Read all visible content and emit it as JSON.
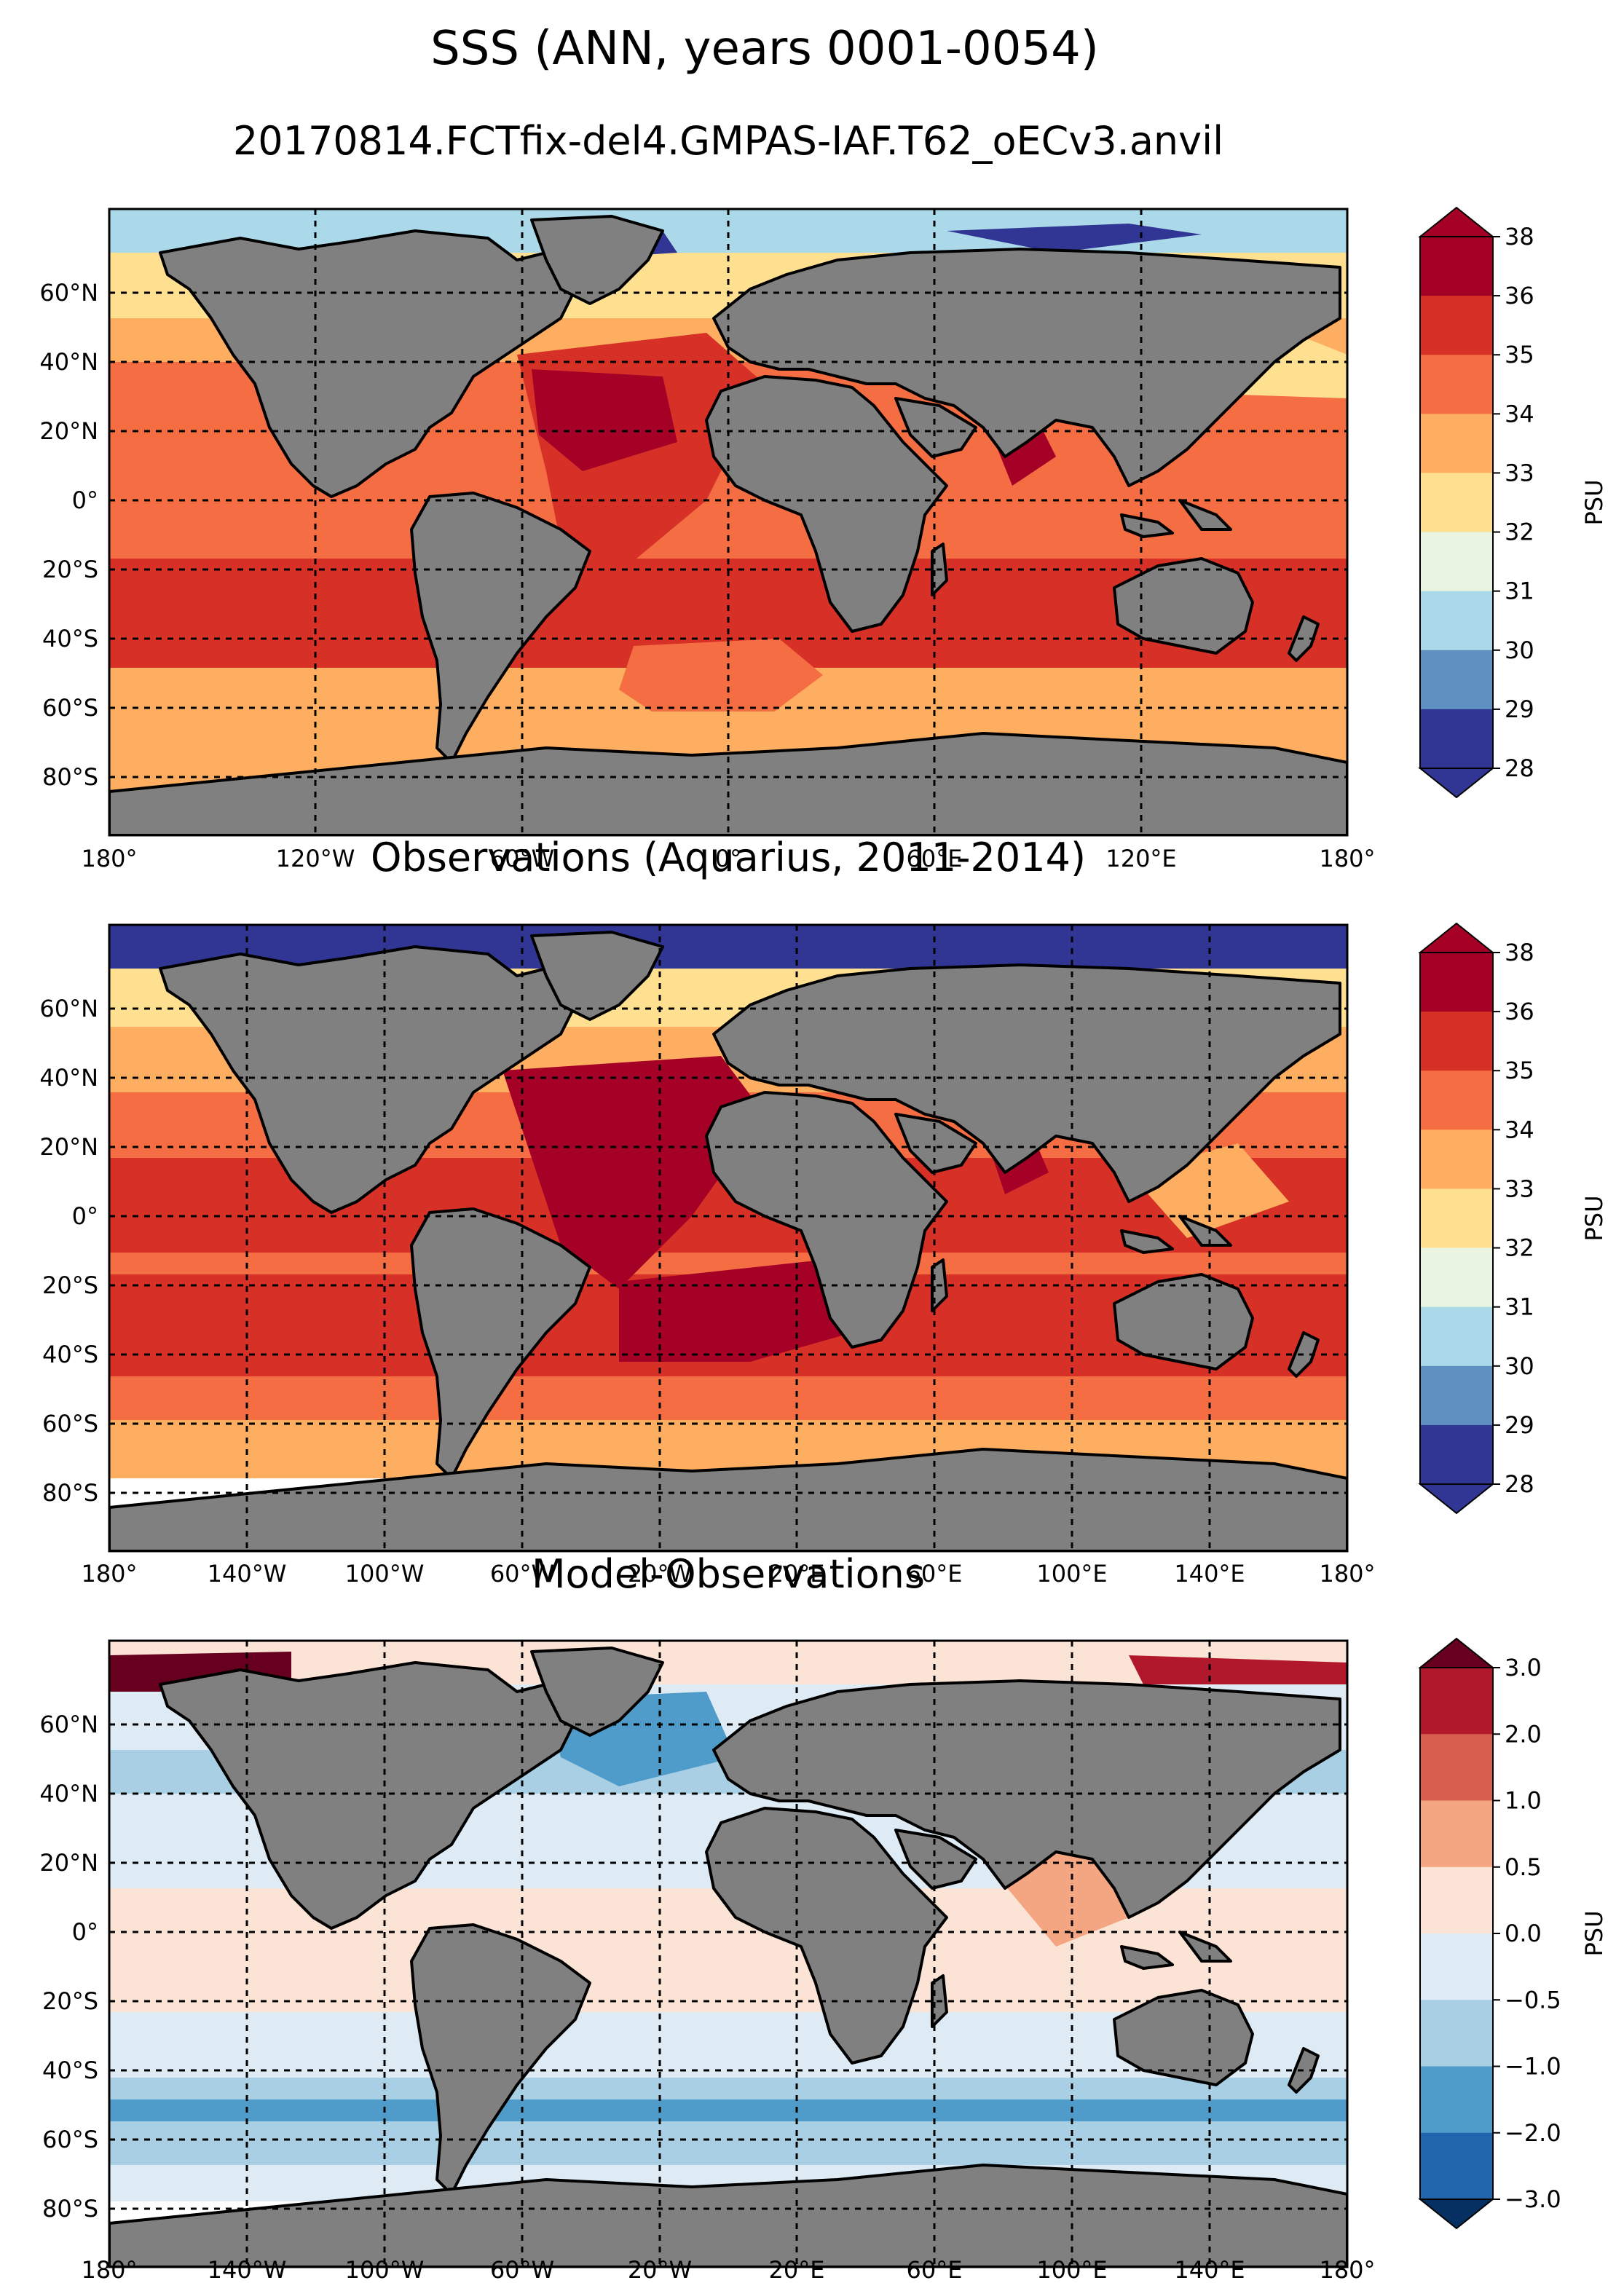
{
  "figure": {
    "title": "SSS (ANN, years 0001-0054)",
    "subtitle": "20170814.FCTfix-del4.GMPAS-IAF.T62_oECv3.anvil"
  },
  "lat_ticks": [
    "60°N",
    "40°N",
    "20°N",
    "0°",
    "20°S",
    "40°S",
    "60°S",
    "80°S"
  ],
  "panels": [
    {
      "id": "model",
      "title": "",
      "lon_ticks": [
        "180°",
        "120°W",
        "60°W",
        "0°",
        "60°E",
        "120°E",
        "180°"
      ],
      "colorbar": {
        "label": "PSU",
        "ticks": [
          "38",
          "36",
          "35",
          "34",
          "33",
          "32",
          "31",
          "30",
          "29",
          "28"
        ],
        "colors": [
          "#a50026",
          "#d73027",
          "#f46d43",
          "#fdae61",
          "#fee090",
          "#e9f5e1",
          "#abd9e9",
          "#5e90c2",
          "#313695"
        ]
      }
    },
    {
      "id": "obs",
      "title": "Observations (Aquarius, 2011-2014)",
      "lon_ticks": [
        "180°",
        "140°W",
        "100°W",
        "60°W",
        "20°W",
        "20°E",
        "60°E",
        "100°E",
        "140°E",
        "180°"
      ],
      "colorbar": {
        "label": "PSU",
        "ticks": [
          "38",
          "36",
          "35",
          "34",
          "33",
          "32",
          "31",
          "30",
          "29",
          "28"
        ],
        "colors": [
          "#a50026",
          "#d73027",
          "#f46d43",
          "#fdae61",
          "#fee090",
          "#e9f5e1",
          "#abd9e9",
          "#5e90c2",
          "#313695"
        ]
      }
    },
    {
      "id": "diff",
      "title": "Model-Observations",
      "lon_ticks": [
        "180°",
        "140°W",
        "100°W",
        "60°W",
        "20°W",
        "20°E",
        "60°E",
        "100°E",
        "140°E",
        "180°"
      ],
      "colorbar": {
        "label": "PSU",
        "ticks": [
          "3.0",
          "2.0",
          "1.0",
          "0.5",
          "0.0",
          "−0.5",
          "−1.0",
          "−2.0",
          "−3.0"
        ],
        "colors": [
          "#b2182b",
          "#d6604d",
          "#f4a582",
          "#fbe3d6",
          "#deebf5",
          "#a9cfe5",
          "#4f9bc9",
          "#2166ac"
        ]
      }
    }
  ],
  "land_color": "#808080",
  "no_data_color": "#ffffff"
}
